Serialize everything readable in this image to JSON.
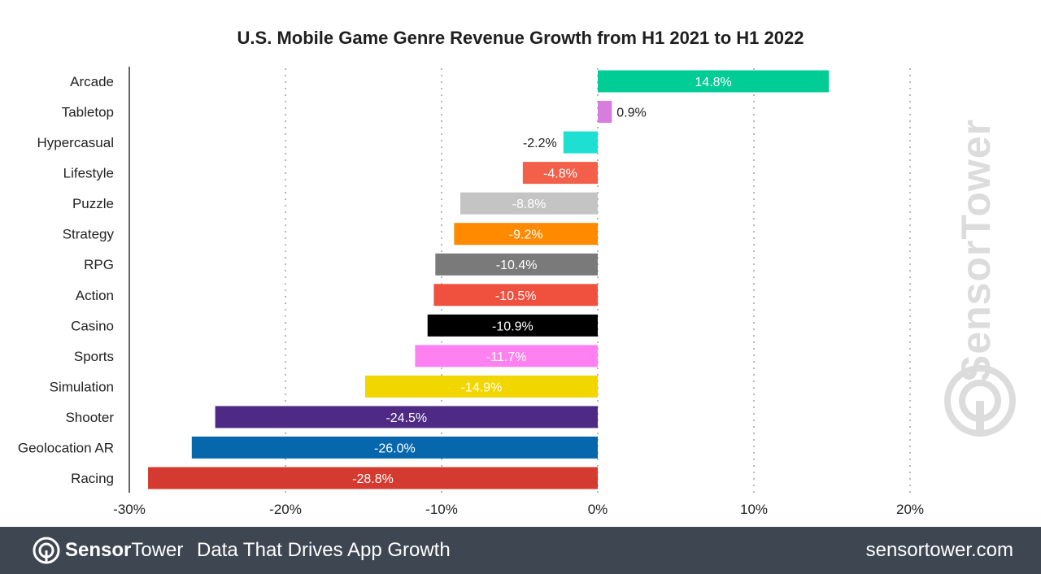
{
  "chart_data": {
    "type": "bar",
    "orientation": "horizontal",
    "title": "U.S. Mobile Game Genre Revenue Growth from H1 2021 to H1 2022",
    "xlabel": "",
    "ylabel": "",
    "xlim": [
      -30,
      20
    ],
    "xticks": [
      -30,
      -20,
      -10,
      0,
      10,
      20
    ],
    "xtick_labels": [
      "-30%",
      "-20%",
      "-10%",
      "0%",
      "10%",
      "20%"
    ],
    "grid": "vertical dotted",
    "categories": [
      "Arcade",
      "Tabletop",
      "Hypercasual",
      "Lifestyle",
      "Puzzle",
      "Strategy",
      "RPG",
      "Action",
      "Casino",
      "Sports",
      "Simulation",
      "Shooter",
      "Geolocation AR",
      "Racing"
    ],
    "values": [
      14.8,
      0.9,
      -2.2,
      -4.8,
      -8.8,
      -9.2,
      -10.4,
      -10.5,
      -10.9,
      -11.7,
      -14.9,
      -24.5,
      -26.0,
      -28.8
    ],
    "value_labels": [
      "14.8%",
      "0.9%",
      "-2.2%",
      "-4.8%",
      "-8.8%",
      "-9.2%",
      "-10.4%",
      "-10.5%",
      "-10.9%",
      "-11.7%",
      "-14.9%",
      "-24.5%",
      "-26.0%",
      "-28.8%"
    ],
    "colors": [
      "#00cc96",
      "#d87de0",
      "#1ee0d2",
      "#f2604a",
      "#c4c4c4",
      "#ff8a00",
      "#7a7a7a",
      "#f0503e",
      "#000000",
      "#ff80f0",
      "#f2d600",
      "#4e2a84",
      "#0767ad",
      "#d43a2f"
    ]
  },
  "watermark": {
    "text": "SensorTower",
    "icon": "sensor-tower-logo-icon"
  },
  "footer": {
    "brand_bold": "Sensor",
    "brand_rest": "Tower",
    "tagline": "Data That Drives App Growth",
    "url": "sensortower.com",
    "background": "#3e4652",
    "icon": "sensor-tower-logo-icon"
  }
}
